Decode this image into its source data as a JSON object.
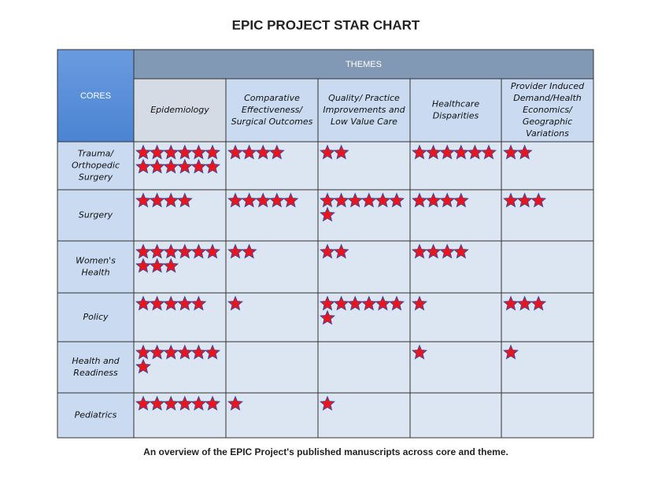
{
  "title": "EPIC PROJECT STAR CHART",
  "caption": "An overview of the EPIC Project's published manuscripts across core and theme.",
  "table": {
    "corner": "CORES",
    "group_header": "THEMES",
    "columns": [
      "Epidemiology",
      "Comparative Effectiveness/ Surgical Outcomes",
      "Quality/ Practice Improvements and Low Value Care",
      "Healthcare Disparities",
      "Provider Induced Demand/Health Economics/ Geographic Variations"
    ],
    "rows": [
      {
        "core": "Trauma/ Orthopedic Surgery",
        "stars": [
          12,
          4,
          2,
          6,
          2
        ]
      },
      {
        "core": "Surgery",
        "stars": [
          4,
          5,
          7,
          4,
          3
        ]
      },
      {
        "core": "Women's Health",
        "stars": [
          9,
          2,
          2,
          4,
          0
        ]
      },
      {
        "core": "Policy",
        "stars": [
          5,
          1,
          7,
          1,
          3
        ]
      },
      {
        "core": "Health and Readiness",
        "stars": [
          7,
          0,
          0,
          1,
          1
        ]
      },
      {
        "core": "Pediatrics",
        "stars": [
          6,
          1,
          1,
          0,
          0
        ]
      }
    ]
  }
}
